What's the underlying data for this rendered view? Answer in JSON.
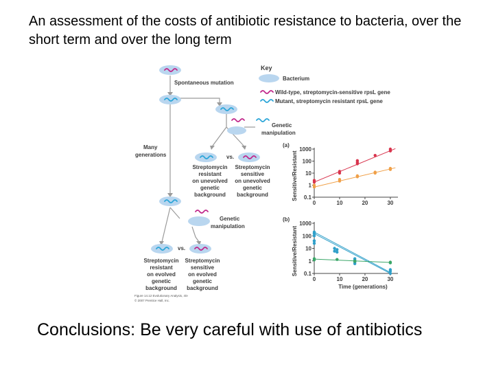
{
  "title": "An assessment of the costs of antibiotic resistance to bacteria, over the short term and over the long term",
  "conclusion": "Conclusions: Be very careful with use of antibiotics",
  "colors": {
    "cell": "#b9d6ef",
    "wild_type": "#c0268a",
    "mutant": "#2aa5d8",
    "panel_a_series1": "#d8344d",
    "panel_a_series2": "#f0a048",
    "panel_b_series1": "#2f9fc9",
    "panel_b_series2": "#3aa668",
    "arrow": "#9a9a9a"
  },
  "diagram": {
    "spontaneous_mutation": "Spontaneous mutation",
    "genetic_manipulation_1a": "Genetic",
    "genetic_manipulation_1b": "manipulation",
    "many_generations_a": "Many",
    "many_generations_b": "generations",
    "vs": "vs.",
    "left_group_1": [
      "Streptomycin",
      "resistant",
      "on unevolved",
      "genetic",
      "background"
    ],
    "right_group_1": [
      "Streptomycin",
      "sensitive",
      "on unevolved",
      "genetic",
      "background"
    ],
    "genetic_manipulation_2a": "Genetic",
    "genetic_manipulation_2b": "manipulation",
    "left_group_2": [
      "Streptomycin",
      "resistant",
      "on evolved",
      "genetic",
      "background"
    ],
    "right_group_2": [
      "Streptomycin",
      "sensitive",
      "on evolved",
      "genetic",
      "background"
    ],
    "credit_1": "Figure 14.12  Evolutionary Analysis, 4/e",
    "credit_2": "© 2007 Prentice Hall, Inc."
  },
  "key": {
    "title": "Key",
    "bacterium": "Bacterium",
    "wild_type": "Wild-type, streptomycin-sensitive rpsL gene",
    "mutant": "Mutant, streptomycin resistant rpsL gene"
  },
  "chart_data": [
    {
      "type": "scatter",
      "panel": "(a)",
      "ylabel": "Sensitive/Resistant",
      "xlabel": "",
      "log_y": true,
      "ylim": [
        0.1,
        1000
      ],
      "xlim": [
        0,
        33
      ],
      "x_ticks": [
        "0",
        "10",
        "20",
        "30"
      ],
      "y_ticks": [
        "0.1",
        "1",
        "10",
        "100",
        "1000"
      ],
      "series": [
        {
          "points": [
            [
              0,
              1.8
            ],
            [
              0,
              2.5
            ],
            [
              10,
              10
            ],
            [
              10,
              14
            ],
            [
              17,
              60
            ],
            [
              17,
              80
            ],
            [
              17,
              110
            ],
            [
              24,
              300
            ],
            [
              30,
              700
            ],
            [
              30,
              1000
            ]
          ],
          "fit": [
            [
              0,
              1.8
            ],
            [
              32,
              1100
            ]
          ]
        },
        {
          "points": [
            [
              0,
              0.7
            ],
            [
              0,
              1.0
            ],
            [
              10,
              2.2
            ],
            [
              10,
              3.0
            ],
            [
              17,
              5
            ],
            [
              17,
              6
            ],
            [
              24,
              10
            ],
            [
              24,
              12
            ],
            [
              30,
              20
            ],
            [
              30,
              25
            ]
          ],
          "fit": [
            [
              0,
              0.7
            ],
            [
              32,
              28
            ]
          ]
        }
      ]
    },
    {
      "type": "scatter",
      "panel": "(b)",
      "ylabel": "Sensitive/Resistant",
      "xlabel": "Time (generations)",
      "log_y": true,
      "ylim": [
        0.1,
        1000
      ],
      "xlim": [
        0,
        33
      ],
      "x_ticks": [
        "0",
        "10",
        "20",
        "30"
      ],
      "y_ticks": [
        "0.1",
        "1",
        "10",
        "100",
        "1000"
      ],
      "series": [
        {
          "points": [
            [
              0,
              150
            ],
            [
              0,
              200
            ],
            [
              0,
              40
            ],
            [
              0,
              25
            ],
            [
              8,
              10
            ],
            [
              8,
              6
            ],
            [
              16,
              1.5
            ],
            [
              16,
              0.9
            ],
            [
              16,
              0.6
            ],
            [
              30,
              0.15
            ],
            [
              30,
              0.2
            ]
          ],
          "fit": [
            [
              0,
              200
            ],
            [
              30,
              0.12
            ]
          ]
        },
        {
          "points": [
            [
              0,
              150
            ],
            [
              0,
              100
            ],
            [
              0,
              40
            ],
            [
              9,
              8
            ],
            [
              9,
              5
            ],
            [
              16,
              1.2
            ],
            [
              16,
              0.8
            ],
            [
              30,
              0.1
            ]
          ],
          "fit": [
            [
              0,
              150
            ],
            [
              30,
              0.1
            ]
          ]
        },
        {
          "points": [
            [
              0,
              1.5
            ],
            [
              0,
              1.2
            ],
            [
              9,
              1.3
            ],
            [
              16,
              1.0
            ],
            [
              16,
              0.9
            ],
            [
              30,
              0.7
            ],
            [
              30,
              0.8
            ]
          ],
          "fit": [
            [
              0,
              1.4
            ],
            [
              30,
              0.75
            ]
          ]
        }
      ]
    }
  ]
}
